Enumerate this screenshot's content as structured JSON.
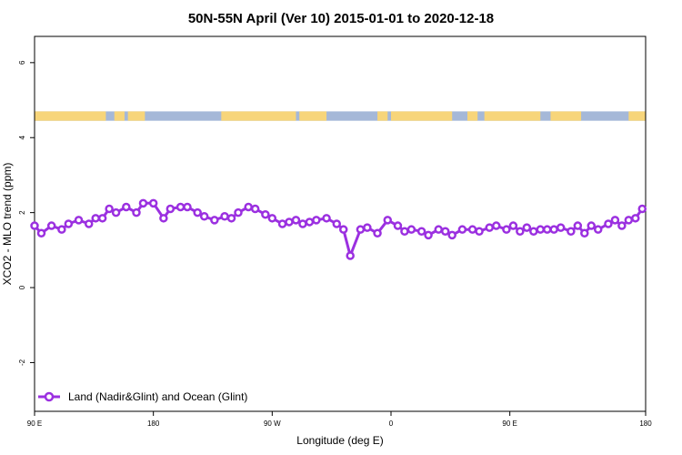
{
  "chart_data": {
    "type": "line",
    "title": "50N-55N April (Ver 10)   2015-01-01 to 2020-12-18",
    "xlabel": "Longitude (deg E)",
    "ylabel": "XCO2 - MLO trend (ppm)",
    "xlim": [
      90,
      450
    ],
    "ylim": [
      -3.3,
      6.7
    ],
    "x_ticks": [
      {
        "value": 90,
        "label": "90 E"
      },
      {
        "value": 160,
        "label": "180"
      },
      {
        "value": 230,
        "label": "90 W"
      },
      {
        "value": 300,
        "label": "0"
      },
      {
        "value": 370,
        "label": "90 E"
      },
      {
        "value": 450,
        "label": "180"
      }
    ],
    "y_ticks": [
      {
        "value": -2,
        "label": "-2"
      },
      {
        "value": 0,
        "label": "0"
      },
      {
        "value": 2,
        "label": "2"
      },
      {
        "value": 4,
        "label": "4"
      },
      {
        "value": 6,
        "label": "6"
      }
    ],
    "grid": false,
    "legend_position": "bottom-left",
    "land_ocean_strip": {
      "y_range": [
        4.45,
        4.7
      ],
      "ocean_color": "#a5b8d8",
      "land_color": "#f7d57a",
      "land_segments": [
        [
          90,
          132
        ],
        [
          137,
          143
        ],
        [
          145,
          155
        ],
        [
          200,
          244
        ],
        [
          246,
          262
        ],
        [
          292,
          298
        ],
        [
          300,
          336
        ],
        [
          345,
          351
        ],
        [
          355,
          388
        ],
        [
          394,
          412
        ],
        [
          440,
          450
        ]
      ]
    },
    "series": [
      {
        "name": "Land (Nadir&Glint) and Ocean (Glint)",
        "color": "#9b30e0",
        "x": [
          90,
          94,
          100,
          106,
          110,
          116,
          122,
          126,
          130,
          134,
          138,
          144,
          150,
          154,
          160,
          166,
          170,
          176,
          180,
          186,
          190,
          196,
          202,
          206,
          210,
          216,
          220,
          226,
          230,
          236,
          240,
          244,
          248,
          252,
          256,
          262,
          268,
          272,
          276,
          282,
          286,
          292,
          298,
          304,
          308,
          312,
          318,
          322,
          328,
          332,
          336,
          342,
          348,
          352,
          358,
          362,
          368,
          372,
          376,
          380,
          384,
          388,
          392,
          396,
          400,
          406,
          410,
          414,
          418,
          422,
          428,
          432,
          436,
          440,
          444,
          448
        ],
        "y": [
          1.65,
          1.45,
          1.65,
          1.55,
          1.7,
          1.8,
          1.7,
          1.85,
          1.85,
          2.1,
          2.0,
          2.15,
          2.0,
          2.25,
          2.25,
          1.85,
          2.1,
          2.15,
          2.15,
          2.0,
          1.9,
          1.8,
          1.9,
          1.85,
          2.0,
          2.15,
          2.1,
          1.95,
          1.85,
          1.7,
          1.75,
          1.8,
          1.7,
          1.75,
          1.8,
          1.85,
          1.7,
          1.55,
          0.85,
          1.55,
          1.6,
          1.45,
          1.8,
          1.65,
          1.5,
          1.55,
          1.5,
          1.4,
          1.55,
          1.5,
          1.4,
          1.55,
          1.55,
          1.5,
          1.6,
          1.65,
          1.55,
          1.65,
          1.5,
          1.6,
          1.5,
          1.55,
          1.55,
          1.55,
          1.6,
          1.5,
          1.65,
          1.45,
          1.65,
          1.55,
          1.7,
          1.8,
          1.65,
          1.8,
          1.85,
          2.1
        ]
      }
    ]
  }
}
